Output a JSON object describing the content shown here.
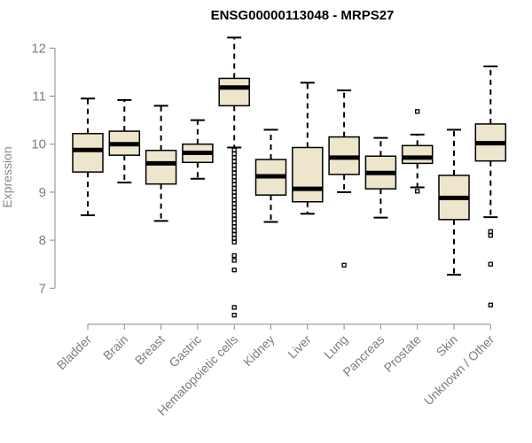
{
  "chart_data": {
    "type": "boxplot",
    "title": "ENSG00000113048 - MRPS27",
    "xlabel": "",
    "ylabel": "Expression",
    "ylim": [
      6.1,
      12.3
    ],
    "yticks": [
      7,
      8,
      9,
      10,
      11,
      12
    ],
    "colors": {
      "box_fill": "#ede6cc",
      "stroke": "#000000",
      "axis": "#8a8a8a",
      "tick_text": "#7d7d7d"
    },
    "categories": [
      "Bladder",
      "Brain",
      "Breast",
      "Gastric",
      "Hematopoietic cells",
      "Kidney",
      "Liver",
      "Lung",
      "Pancreas",
      "Prostate",
      "Skin",
      "Unknown / Other"
    ],
    "boxes": [
      {
        "name": "Bladder",
        "whisker_low": 8.52,
        "q1": 9.42,
        "median": 9.88,
        "q3": 10.22,
        "whisker_high": 10.95,
        "outliers": []
      },
      {
        "name": "Brain",
        "whisker_low": 9.2,
        "q1": 9.77,
        "median": 10.0,
        "q3": 10.27,
        "whisker_high": 10.92,
        "outliers": []
      },
      {
        "name": "Breast",
        "whisker_low": 8.4,
        "q1": 9.17,
        "median": 9.6,
        "q3": 9.87,
        "whisker_high": 10.8,
        "outliers": []
      },
      {
        "name": "Gastric",
        "whisker_low": 9.28,
        "q1": 9.62,
        "median": 9.82,
        "q3": 10.0,
        "whisker_high": 10.5,
        "outliers": []
      },
      {
        "name": "Hematopoietic cells",
        "whisker_low": 9.93,
        "q1": 10.8,
        "median": 11.18,
        "q3": 11.37,
        "whisker_high": 12.22,
        "outliers": [
          9.88,
          9.8,
          9.72,
          9.64,
          9.56,
          9.48,
          9.4,
          9.32,
          9.24,
          9.16,
          9.08,
          9.0,
          8.92,
          8.84,
          8.76,
          8.68,
          8.6,
          8.52,
          8.44,
          8.36,
          8.28,
          8.2,
          8.12,
          8.04,
          7.96,
          7.68,
          7.58,
          7.38,
          6.6,
          6.44
        ]
      },
      {
        "name": "Kidney",
        "whisker_low": 8.38,
        "q1": 8.94,
        "median": 9.33,
        "q3": 9.68,
        "whisker_high": 10.3,
        "outliers": []
      },
      {
        "name": "Liver",
        "whisker_low": 8.55,
        "q1": 8.8,
        "median": 9.07,
        "q3": 9.93,
        "whisker_high": 11.28,
        "outliers": []
      },
      {
        "name": "Lung",
        "whisker_low": 9.0,
        "q1": 9.37,
        "median": 9.72,
        "q3": 10.15,
        "whisker_high": 11.12,
        "outliers": [
          7.48
        ]
      },
      {
        "name": "Pancreas",
        "whisker_low": 8.47,
        "q1": 9.07,
        "median": 9.4,
        "q3": 9.75,
        "whisker_high": 10.13,
        "outliers": []
      },
      {
        "name": "Prostate",
        "whisker_low": 9.1,
        "q1": 9.6,
        "median": 9.72,
        "q3": 9.97,
        "whisker_high": 10.2,
        "outliers": [
          10.68,
          9.02
        ]
      },
      {
        "name": "Skin",
        "whisker_low": 7.28,
        "q1": 8.43,
        "median": 8.88,
        "q3": 9.35,
        "whisker_high": 10.3,
        "outliers": []
      },
      {
        "name": "Unknown / Other",
        "whisker_low": 8.48,
        "q1": 9.65,
        "median": 10.02,
        "q3": 10.42,
        "whisker_high": 11.62,
        "outliers": [
          8.18,
          8.1,
          7.5,
          6.65
        ]
      }
    ]
  }
}
